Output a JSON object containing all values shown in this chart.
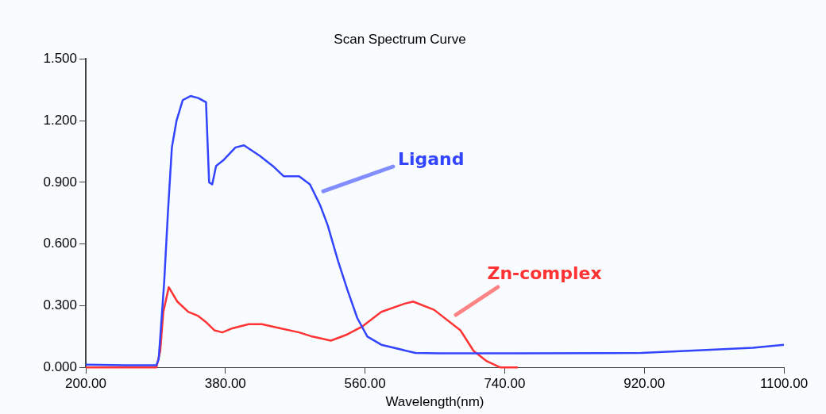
{
  "chart_data": {
    "type": "line",
    "title": "Scan Spectrum Curve",
    "xlabel": "Wavelength(nm)",
    "xlim": [
      200,
      1100
    ],
    "xticks": [
      {
        "value": 200,
        "label": "200.00"
      },
      {
        "value": 380,
        "label": "380.00"
      },
      {
        "value": 560,
        "label": "560.00"
      },
      {
        "value": 740,
        "label": "740.00"
      },
      {
        "value": 920,
        "label": "920.00"
      },
      {
        "value": 1100,
        "label": "1100.00"
      }
    ],
    "ylim": [
      0,
      1.5
    ],
    "yticks": [
      {
        "value": 0,
        "label": "0.000"
      },
      {
        "value": 0.3,
        "label": "0.300"
      },
      {
        "value": 0.6,
        "label": "0.600"
      },
      {
        "value": 0.9,
        "label": "0.900"
      },
      {
        "value": 1.2,
        "label": "1.200"
      },
      {
        "value": 1.5,
        "label": "1.500"
      }
    ],
    "marker": "none",
    "legend": false,
    "series": [
      {
        "name": "Ligand",
        "color": "#3344ff",
        "x": [
          200,
          250,
          291,
          294,
          301,
          306,
          311,
          317,
          325,
          335,
          345,
          355,
          359,
          363,
          368,
          378,
          393,
          404,
          424,
          441,
          455,
          475,
          489,
          502,
          512,
          525,
          537,
          550,
          563,
          581,
          625,
          656,
          760,
          916,
          1000,
          1060,
          1100
        ],
        "values": [
          0.013,
          0.01,
          0.01,
          0.04,
          0.41,
          0.76,
          1.07,
          1.2,
          1.3,
          1.32,
          1.31,
          1.29,
          0.9,
          0.89,
          0.98,
          1.01,
          1.07,
          1.08,
          1.03,
          0.98,
          0.93,
          0.93,
          0.89,
          0.79,
          0.69,
          0.52,
          0.38,
          0.24,
          0.15,
          0.11,
          0.07,
          0.068,
          0.068,
          0.07,
          0.085,
          0.095,
          0.11
        ]
      },
      {
        "name": "Zn-complex",
        "color": "#ff3333",
        "x": [
          200,
          250,
          291,
          296,
          300,
          307,
          318,
          332,
          345,
          355,
          366,
          376,
          389,
          410,
          427,
          451,
          475,
          492,
          516,
          537,
          557,
          581,
          611,
          622,
          649,
          683,
          700,
          717,
          734,
          757
        ],
        "values": [
          0,
          0,
          0,
          0.08,
          0.27,
          0.39,
          0.32,
          0.27,
          0.25,
          0.22,
          0.18,
          0.17,
          0.19,
          0.21,
          0.21,
          0.19,
          0.17,
          0.15,
          0.13,
          0.16,
          0.2,
          0.27,
          0.31,
          0.32,
          0.28,
          0.18,
          0.08,
          0.03,
          0,
          0
        ]
      }
    ]
  }
}
